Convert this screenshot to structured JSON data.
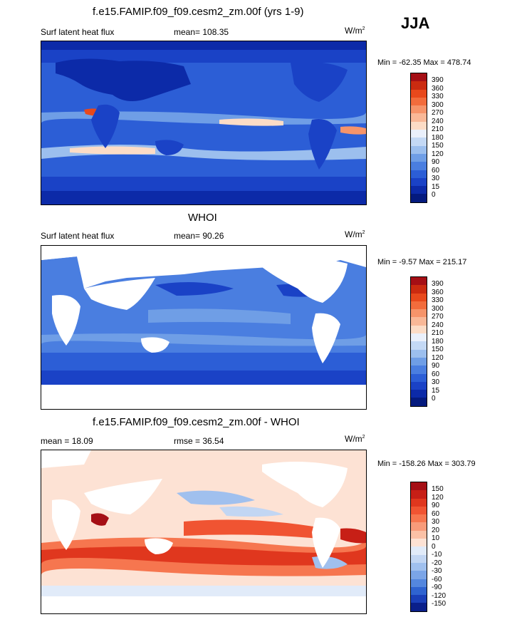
{
  "season": "JJA",
  "panels": [
    {
      "title": "f.e15.FAMIP.f09_f09.cesm2_zm.00f (yrs 1-9)",
      "left_label": "Surf latent heat flux",
      "center_label": "mean= 108.35",
      "units": "W/m",
      "units_sup": "2",
      "minmax": "Min = -62.35 Max = 478.74",
      "colorbar_ticks": [
        "390",
        "360",
        "330",
        "300",
        "270",
        "240",
        "210",
        "180",
        "150",
        "120",
        "90",
        "60",
        "30",
        "15",
        "0"
      ],
      "colorbar_colors": [
        "#a50f15",
        "#cb2b10",
        "#e8491c",
        "#f26c3c",
        "#f6946a",
        "#f9b897",
        "#fcdcc6",
        "#eaf0fb",
        "#c4d9f5",
        "#9cbfee",
        "#6f9ee6",
        "#4a7ee0",
        "#2c5ed6",
        "#1a42c6",
        "#0c2aa8",
        "#041a7e"
      ],
      "fields": {
        "lat": "Lat",
        "lon": "Lon"
      }
    },
    {
      "title": "WHOI",
      "left_label": "Surf latent heat flux",
      "center_label": "mean=  90.26",
      "units": "W/m",
      "units_sup": "2",
      "minmax": "Min =  -9.57 Max = 215.17",
      "colorbar_ticks": [
        "390",
        "360",
        "330",
        "300",
        "270",
        "240",
        "210",
        "180",
        "150",
        "120",
        "90",
        "60",
        "30",
        "15",
        "0"
      ],
      "colorbar_colors": [
        "#a50f15",
        "#cb2b10",
        "#e8491c",
        "#f26c3c",
        "#f6946a",
        "#f9b897",
        "#fcdcc6",
        "#eaf0fb",
        "#c4d9f5",
        "#9cbfee",
        "#6f9ee6",
        "#4a7ee0",
        "#2c5ed6",
        "#1a42c6",
        "#0c2aa8",
        "#041a7e"
      ]
    },
    {
      "title": "f.e15.FAMIP.f09_f09.cesm2_zm.00f - WHOI",
      "left_label": "mean =  18.09",
      "center_label": "rmse =  36.54",
      "units": "W/m",
      "units_sup": "2",
      "minmax": "Min = -158.26 Max = 303.79",
      "colorbar_ticks": [
        "150",
        "120",
        "90",
        "60",
        "30",
        "20",
        "10",
        "0",
        "-10",
        "-20",
        "-30",
        "-60",
        "-90",
        "-120",
        "-150"
      ],
      "colorbar_colors": [
        "#a50f15",
        "#c71f16",
        "#e0371e",
        "#f05432",
        "#f6764f",
        "#f89b7a",
        "#fbc1a6",
        "#fde2d4",
        "#e1ebf9",
        "#c2d6f3",
        "#a0c0ee",
        "#7ba5e7",
        "#5487de",
        "#2f63d0",
        "#1a3fb8",
        "#0a1f8a"
      ]
    }
  ]
}
